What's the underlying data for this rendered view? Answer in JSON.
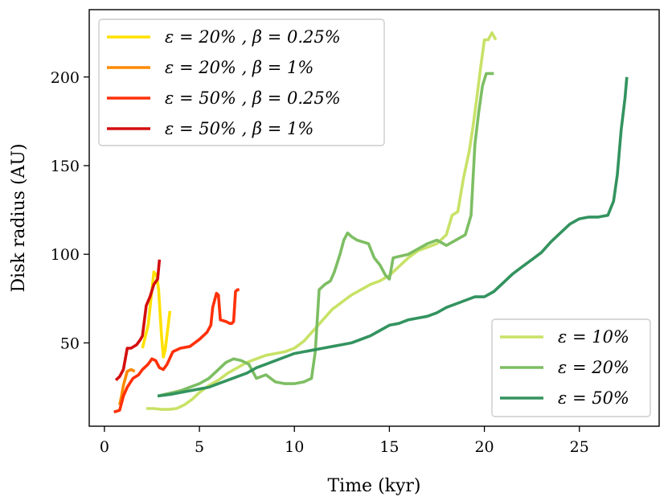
{
  "chart_data": {
    "type": "line",
    "title": "",
    "xlabel": "Time (kyr)",
    "ylabel": "Disk radius (AU)",
    "xlim": [
      -0.8,
      29.2
    ],
    "ylim": [
      3,
      238
    ],
    "xticks": [
      0,
      5,
      10,
      15,
      20,
      25
    ],
    "yticks": [
      50,
      100,
      150,
      200
    ],
    "grid": false,
    "legends": [
      {
        "placement": "top-left",
        "entries": [
          "ε = 20% ,  β = 0.25%",
          "ε = 20% ,  β = 1%",
          "ε = 50% ,  β = 0.25%",
          "ε = 50% ,  β = 1%"
        ]
      },
      {
        "placement": "bottom-right",
        "entries": [
          "ε = 10%",
          "ε = 20%",
          "ε = 50%"
        ]
      }
    ],
    "series": [
      {
        "name": "ε = 20% ,  β = 0.25%",
        "color": "#ffe100",
        "x": [
          2.0,
          2.3,
          2.6,
          2.75,
          2.85,
          3.0,
          3.1,
          3.2,
          3.3,
          3.45
        ],
        "y": [
          47,
          60,
          90,
          88,
          80,
          55,
          42,
          46,
          55,
          68
        ]
      },
      {
        "name": "ε = 20% ,  β = 1%",
        "color": "#ff8a00",
        "x": [
          0.8,
          0.9,
          1.0,
          1.1,
          1.2,
          1.4,
          1.6
        ],
        "y": [
          15,
          20,
          26,
          30,
          34,
          35,
          34
        ]
      },
      {
        "name": "ε = 50% ,  β = 0.25%",
        "color": "#ff3008",
        "x": [
          0.5,
          0.8,
          1.0,
          1.2,
          1.5,
          1.8,
          2.0,
          2.3,
          2.5,
          2.7,
          2.9,
          3.1,
          3.3,
          3.6,
          4.0,
          4.5,
          5.0,
          5.4,
          5.6,
          5.7,
          5.9,
          6.0,
          6.1,
          6.4,
          6.6,
          6.7,
          6.8,
          6.9,
          7.0,
          7.1
        ],
        "y": [
          11,
          12,
          20,
          25,
          30,
          32,
          35,
          38,
          41,
          40,
          36,
          35,
          38,
          45,
          47,
          48,
          52,
          56,
          60,
          70,
          78,
          77,
          63,
          62,
          61,
          61,
          62,
          79,
          80,
          80
        ]
      },
      {
        "name": "ε = 50% ,  β = 1%",
        "color": "#d40e0e",
        "x": [
          0.6,
          0.8,
          1.0,
          1.2,
          1.4,
          1.7,
          1.9,
          2.0,
          2.2,
          2.4,
          2.6,
          2.8,
          2.9
        ],
        "y": [
          29,
          31,
          35,
          47,
          47,
          49,
          52,
          54,
          71,
          76,
          83,
          86,
          97
        ]
      },
      {
        "name": "ε = 10%",
        "color": "#c8e267",
        "x": [
          2.2,
          2.6,
          3.0,
          3.4,
          3.8,
          4.2,
          4.6,
          5.0,
          5.5,
          6.0,
          6.5,
          7.0,
          7.5,
          8.0,
          8.5,
          9.0,
          9.5,
          10.0,
          10.5,
          11.0,
          11.5,
          12.0,
          12.5,
          13.0,
          13.5,
          14.0,
          14.5,
          15.0,
          15.5,
          16.0,
          16.5,
          17.0,
          17.5,
          18.0,
          18.3,
          18.6,
          18.9,
          19.2,
          19.4,
          19.6,
          19.8,
          20.0,
          20.2,
          20.4,
          20.6
        ],
        "y": [
          13,
          13,
          12.5,
          12.5,
          13,
          15,
          18,
          22,
          26,
          29,
          33,
          36,
          39,
          41,
          43,
          44,
          45,
          47,
          51,
          57,
          63,
          69,
          73,
          77,
          80,
          83,
          85,
          88,
          93,
          98,
          102,
          104,
          106,
          111,
          122,
          124,
          143,
          158,
          172,
          188,
          205,
          221,
          221,
          225,
          221
        ]
      },
      {
        "name": "ε = 20%",
        "color": "#7dbe63",
        "x": [
          2.8,
          3.2,
          3.6,
          4.0,
          4.5,
          5.0,
          5.5,
          6.0,
          6.4,
          6.8,
          7.2,
          7.6,
          8.0,
          8.5,
          9.0,
          9.5,
          10.0,
          10.5,
          10.9,
          11.1,
          11.3,
          11.6,
          11.9,
          12.1,
          12.4,
          12.6,
          12.8,
          13.0,
          13.3,
          13.6,
          13.9,
          14.2,
          14.5,
          14.8,
          15.0,
          15.2,
          15.6,
          16.0,
          16.5,
          17.0,
          17.5,
          18.0,
          18.5,
          19.0,
          19.3,
          19.5,
          19.7,
          19.9,
          20.1,
          20.3,
          20.5
        ],
        "y": [
          20,
          21,
          22,
          23,
          25,
          27,
          30,
          35,
          39,
          41,
          40,
          38,
          30,
          32,
          28,
          27,
          27,
          28,
          30,
          45,
          80,
          83,
          85,
          90,
          100,
          108,
          112,
          110,
          108,
          107,
          106,
          98,
          94,
          88,
          86,
          98,
          99,
          100,
          103,
          106,
          108,
          105,
          108,
          111,
          122,
          162,
          180,
          195,
          202,
          202,
          202
        ]
      },
      {
        "name": "ε = 50%",
        "color": "#33935f",
        "x": [
          2.8,
          3.5,
          4.0,
          4.5,
          5.0,
          5.5,
          6.0,
          6.5,
          7.0,
          7.5,
          8.0,
          8.5,
          9.0,
          9.5,
          10.0,
          10.5,
          11.0,
          11.5,
          12.0,
          12.5,
          13.0,
          13.5,
          14.0,
          14.5,
          15.0,
          15.5,
          16.0,
          16.5,
          17.0,
          17.5,
          18.0,
          18.5,
          19.0,
          19.5,
          20.0,
          20.5,
          21.0,
          21.5,
          22.0,
          22.5,
          23.0,
          23.5,
          24.0,
          24.5,
          25.0,
          25.5,
          26.0,
          26.5,
          26.8,
          27.0,
          27.2,
          27.4,
          27.5
        ],
        "y": [
          20,
          21,
          22,
          23,
          24,
          25,
          27,
          29,
          31,
          33,
          36,
          38,
          40,
          42,
          44,
          45,
          46,
          47,
          48,
          49,
          50,
          52,
          54,
          57,
          60,
          61,
          63,
          64,
          65,
          67,
          70,
          72,
          74,
          76,
          76,
          79,
          84,
          89,
          93,
          97,
          101,
          107,
          112,
          117,
          120,
          121,
          121,
          122,
          130,
          145,
          170,
          188,
          200
        ]
      }
    ]
  }
}
